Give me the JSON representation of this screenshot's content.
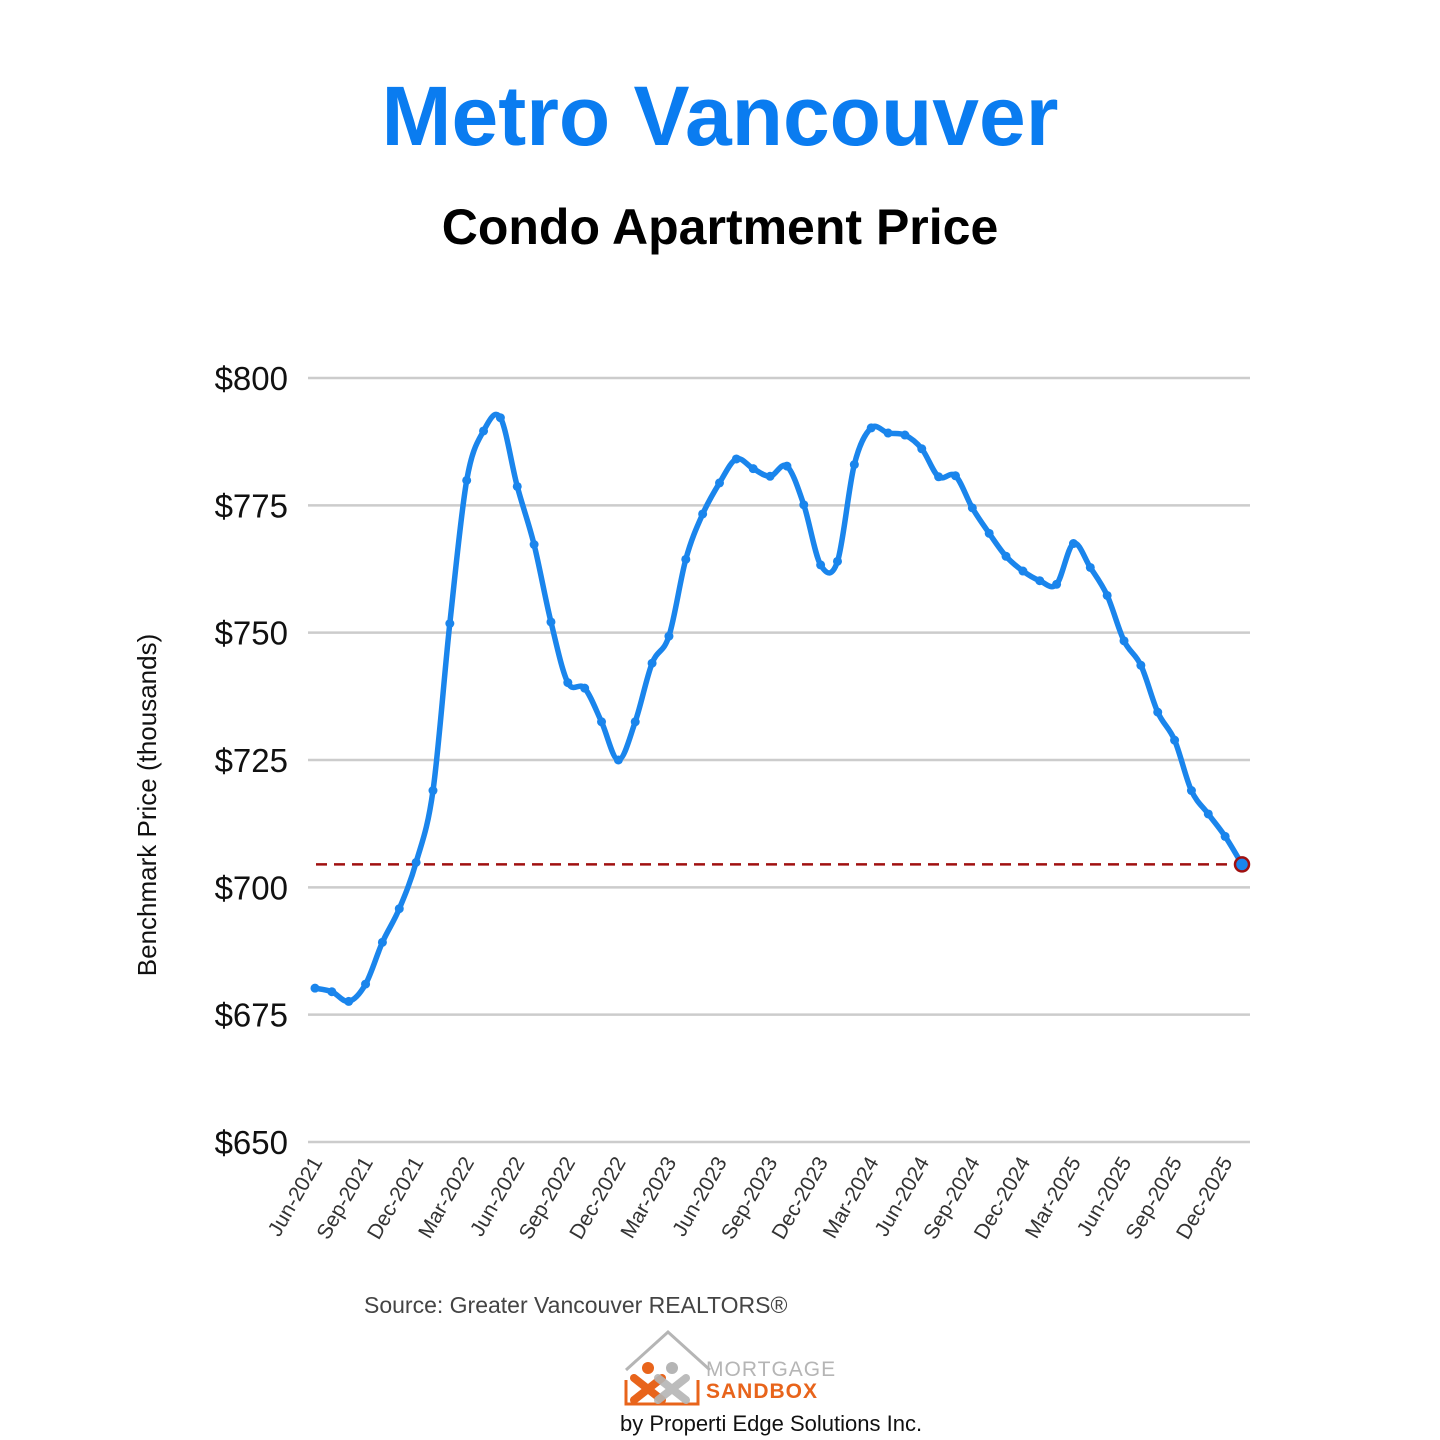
{
  "header": {
    "title": "Metro Vancouver",
    "subtitle": "Condo Apartment Price"
  },
  "colors": {
    "title": "#0a7cf0",
    "line": "#1a85ec",
    "reference": "#a01010",
    "grid": "#cccccc"
  },
  "chart_data": {
    "type": "line",
    "ylabel": "Benchmark Price (thousands)",
    "xlabel": "",
    "ylim": [
      650,
      800
    ],
    "yticks": [
      650,
      675,
      700,
      725,
      750,
      775,
      800
    ],
    "ytick_labels": [
      "$650",
      "$675",
      "$700",
      "$725",
      "$750",
      "$775",
      "$800"
    ],
    "x": [
      "Jun-2021",
      "Jul-2021",
      "Aug-2021",
      "Sep-2021",
      "Oct-2021",
      "Nov-2021",
      "Dec-2021",
      "Jan-2022",
      "Feb-2022",
      "Mar-2022",
      "Apr-2022",
      "May-2022",
      "Jun-2022",
      "Jul-2022",
      "Aug-2022",
      "Sep-2022",
      "Oct-2022",
      "Nov-2022",
      "Dec-2022",
      "Jan-2023",
      "Feb-2023",
      "Mar-2023",
      "Apr-2023",
      "May-2023",
      "Jun-2023",
      "Jul-2023",
      "Aug-2023",
      "Sep-2023",
      "Oct-2023",
      "Nov-2023",
      "Dec-2023",
      "Jan-2024",
      "Feb-2024",
      "Mar-2024",
      "Apr-2024",
      "May-2024",
      "Jun-2024",
      "Jul-2024",
      "Aug-2024",
      "Sep-2024",
      "Oct-2024",
      "Nov-2024",
      "Dec-2024",
      "Jan-2025",
      "Feb-2025",
      "Mar-2025",
      "Apr-2025",
      "May-2025",
      "Jun-2025",
      "Jul-2025",
      "Aug-2025",
      "Sep-2025",
      "Oct-2025",
      "Nov-2025",
      "Dec-2025",
      "Jan-2026"
    ],
    "x_tick_labels": [
      "Jun-2021",
      "Sep-2021",
      "Dec-2021",
      "Mar-2022",
      "Jun-2022",
      "Sep-2022",
      "Dec-2022",
      "Mar-2023",
      "Jun-2023",
      "Sep-2023",
      "Dec-2023",
      "Mar-2024",
      "Jun-2024",
      "Sep-2024",
      "Dec-2024",
      "Mar-2025",
      "Jun-2025",
      "Sep-2025",
      "Dec-2025"
    ],
    "series": [
      {
        "values": [
          680.2,
          679.5,
          677.6,
          681.0,
          689.2,
          695.8,
          704.9,
          719.0,
          751.8,
          779.9,
          789.6,
          792.2,
          778.7,
          767.3,
          752.1,
          740.2,
          739.1,
          732.5,
          725.0,
          732.5,
          744.0,
          749.3,
          764.4,
          773.3,
          779.4,
          784.1,
          782.2,
          780.7,
          782.7,
          775.1,
          763.3,
          764.0,
          783.0,
          790.2,
          789.2,
          788.8,
          786.1,
          780.6,
          780.8,
          774.5,
          769.5,
          765.0,
          762.1,
          760.2,
          759.5,
          767.5,
          762.8,
          757.3,
          748.4,
          743.6,
          734.4,
          728.9,
          719.0,
          714.4,
          710.0,
          704.5
        ]
      }
    ],
    "reference_line": 704.5,
    "highlight_last_point": true,
    "grid": true,
    "legend": "none"
  },
  "footer": {
    "source": "Source: Greater Vancouver REALTORS®",
    "logo_top": "MORTGAGE",
    "logo_bottom": "SANDBOX",
    "byline": "by Properti Edge Solutions Inc."
  }
}
